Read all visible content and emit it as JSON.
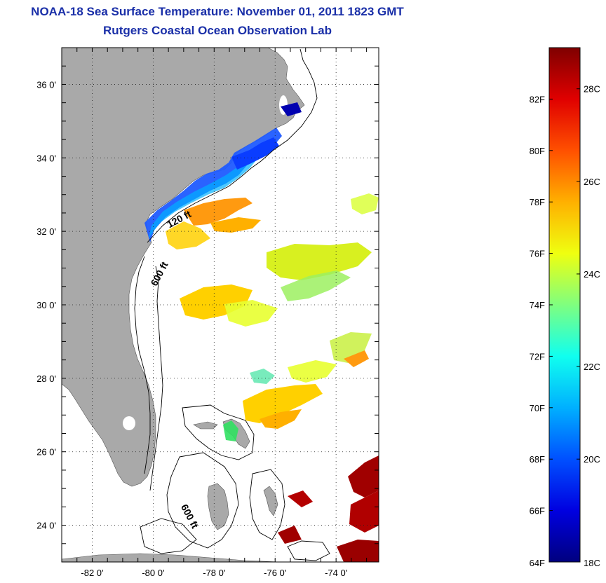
{
  "title": "NOAA-18 Sea Surface Temperature:  November 01, 2011 1823 GMT",
  "subtitle": "Rutgers Coastal Ocean Observation Lab",
  "map": {
    "lon_range": [
      -83.0,
      -72.6
    ],
    "lat_range": [
      23.0,
      37.0
    ],
    "lon_ticks": [
      {
        "value": -82,
        "label": "-82 0'"
      },
      {
        "value": -80,
        "label": "-80 0'"
      },
      {
        "value": -78,
        "label": "-78 0'"
      },
      {
        "value": -76,
        "label": "-76 0'"
      },
      {
        "value": -74,
        "label": "-74 0'"
      }
    ],
    "lat_ticks": [
      {
        "value": 36,
        "label": "36 0'"
      },
      {
        "value": 34,
        "label": "34 0'"
      },
      {
        "value": 32,
        "label": "32 0'"
      },
      {
        "value": 30,
        "label": "30 0'"
      },
      {
        "value": 28,
        "label": "28 0'"
      },
      {
        "value": 26,
        "label": "26 0'"
      },
      {
        "value": 24,
        "label": "24 0'"
      }
    ],
    "grid": "dotted",
    "land_color": "#a9a9a9",
    "contour_labels": [
      {
        "text": "120 ft",
        "lon": -79.1,
        "lat": 32.25,
        "angle": -28
      },
      {
        "text": "600 ft",
        "lon": -79.7,
        "lat": 30.8,
        "angle": -62
      },
      {
        "text": "600 ft",
        "lon": -78.9,
        "lat": 24.2,
        "angle": 62
      }
    ]
  },
  "colorbar": {
    "colors": [
      "#00007f",
      "#0000e0",
      "#0050ff",
      "#00b0ff",
      "#10ffef",
      "#7fff7f",
      "#efff10",
      "#ffb000",
      "#ff5000",
      "#e00000",
      "#7f0000"
    ],
    "fahrenheit_ticks": [
      "82F",
      "80F",
      "78F",
      "76F",
      "74F",
      "72F",
      "70F",
      "68F",
      "66F",
      "64F"
    ],
    "celsius_ticks": [
      "28C",
      "26C",
      "24C",
      "22C",
      "20C",
      "18C"
    ]
  }
}
